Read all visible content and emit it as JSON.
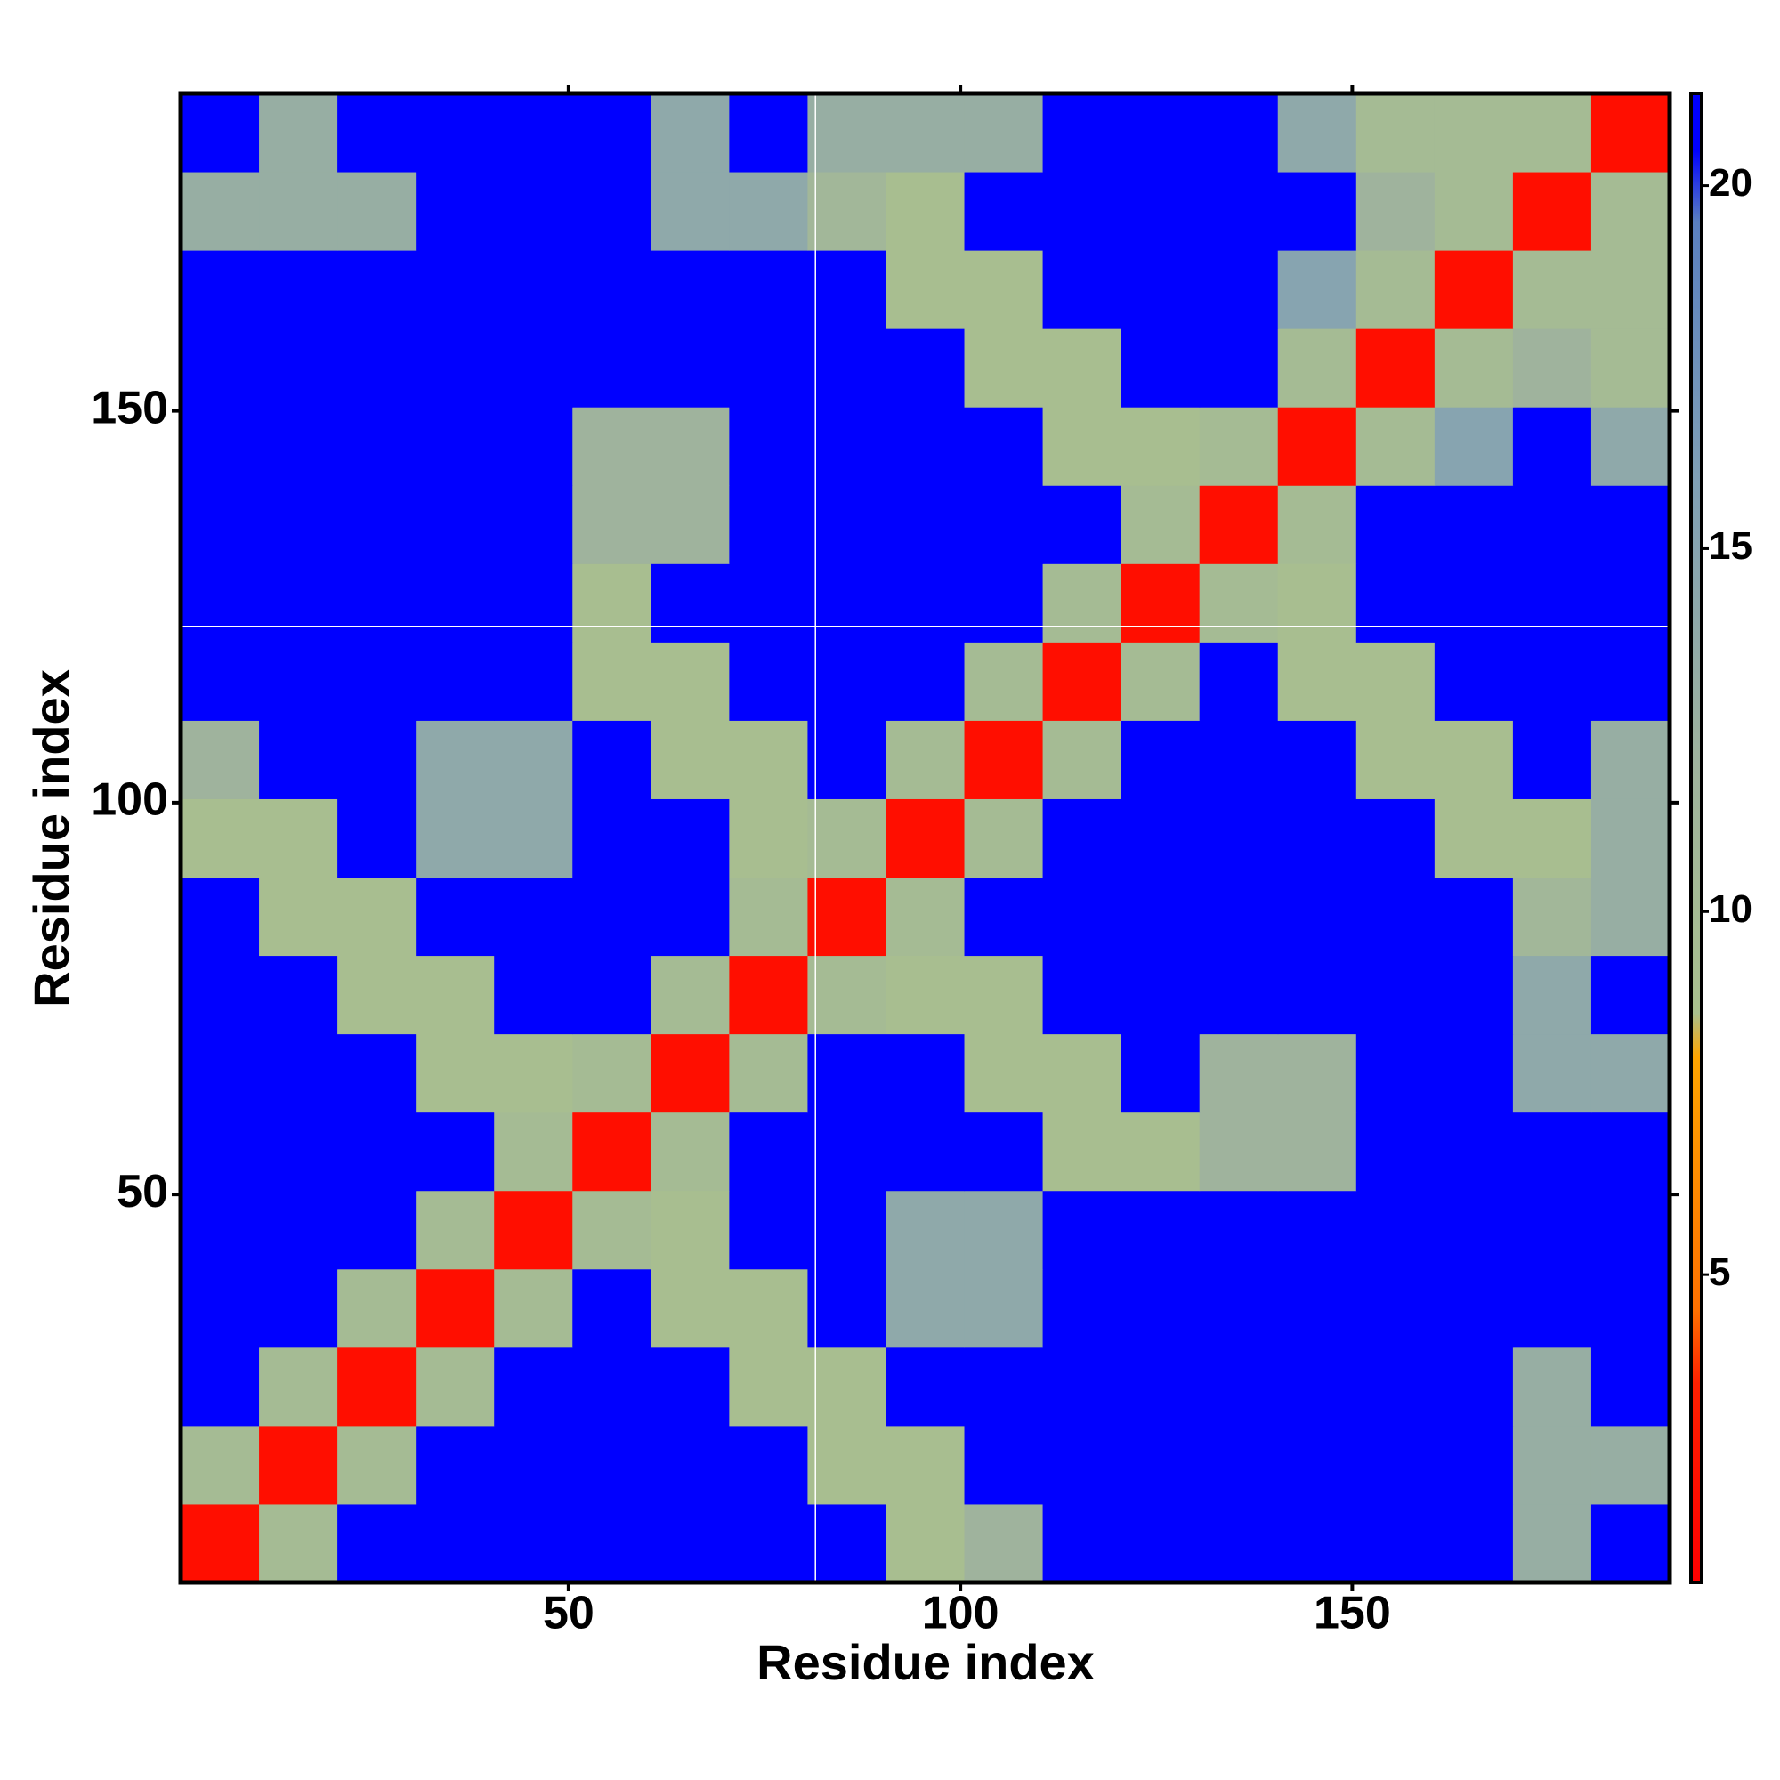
{
  "chart_data": {
    "type": "heatmap",
    "xlabel": "Residue index",
    "ylabel": "Residue index",
    "x": [
      5.5,
      15.5,
      25.5,
      35.5,
      45.5,
      55.5,
      65.5,
      75.5,
      85.5,
      95.5,
      105.5,
      115.5,
      125.5,
      135.5,
      145.5,
      155.5,
      165.5,
      175.5,
      185.5
    ],
    "y": [
      5.5,
      15.5,
      25.5,
      35.5,
      45.5,
      55.5,
      65.5,
      75.5,
      85.5,
      95.5,
      105.5,
      115.5,
      125.5,
      135.5,
      145.5,
      155.5,
      165.5,
      175.5,
      185.5
    ],
    "z": [
      [
        2,
        10,
        21,
        21,
        21,
        21,
        21,
        21,
        21,
        9,
        12,
        21,
        21,
        21,
        21,
        21,
        21,
        13,
        21
      ],
      [
        10,
        2,
        10,
        21,
        21,
        21,
        21,
        21,
        9,
        9,
        21,
        21,
        21,
        21,
        21,
        21,
        21,
        13,
        13
      ],
      [
        21,
        10,
        2,
        10,
        21,
        21,
        21,
        9,
        9,
        21,
        21,
        21,
        21,
        21,
        21,
        21,
        21,
        13,
        21
      ],
      [
        21,
        21,
        10,
        2,
        10,
        21,
        9,
        9,
        21,
        14,
        14,
        21,
        21,
        21,
        21,
        21,
        21,
        21,
        21
      ],
      [
        21,
        21,
        21,
        10,
        2,
        10,
        9,
        21,
        21,
        14,
        14,
        21,
        21,
        21,
        21,
        21,
        21,
        21,
        21
      ],
      [
        21,
        21,
        21,
        21,
        10,
        2,
        10,
        21,
        21,
        21,
        21,
        9,
        9,
        12,
        12,
        21,
        21,
        21,
        21
      ],
      [
        21,
        21,
        21,
        9,
        9,
        10,
        2,
        10,
        21,
        21,
        9,
        9,
        21,
        12,
        12,
        21,
        21,
        14,
        14
      ],
      [
        21,
        21,
        9,
        9,
        21,
        21,
        10,
        2,
        10,
        9,
        9,
        21,
        21,
        21,
        21,
        21,
        21,
        14,
        21
      ],
      [
        21,
        9,
        9,
        21,
        21,
        21,
        21,
        10,
        2,
        10,
        21,
        21,
        21,
        21,
        21,
        21,
        21,
        11,
        13
      ],
      [
        9,
        9,
        21,
        14,
        14,
        21,
        21,
        9,
        10,
        2,
        10,
        21,
        21,
        21,
        21,
        21,
        9,
        9,
        13
      ],
      [
        12,
        21,
        21,
        14,
        14,
        21,
        9,
        9,
        21,
        10,
        2,
        10,
        21,
        21,
        21,
        9,
        9,
        21,
        13
      ],
      [
        21,
        21,
        21,
        21,
        21,
        9,
        9,
        21,
        21,
        21,
        10,
        2,
        10,
        21,
        9,
        9,
        21,
        21,
        21
      ],
      [
        21,
        21,
        21,
        21,
        21,
        9,
        21,
        21,
        21,
        21,
        21,
        10,
        2,
        10,
        9,
        21,
        21,
        21,
        21
      ],
      [
        21,
        21,
        21,
        21,
        21,
        12,
        12,
        21,
        21,
        21,
        21,
        21,
        10,
        2,
        10,
        21,
        21,
        21,
        21
      ],
      [
        21,
        21,
        21,
        21,
        21,
        12,
        12,
        21,
        21,
        21,
        21,
        9,
        9,
        10,
        2,
        10,
        15,
        21,
        14
      ],
      [
        21,
        21,
        21,
        21,
        21,
        21,
        21,
        21,
        21,
        21,
        9,
        9,
        21,
        21,
        10,
        2,
        10,
        12,
        10
      ],
      [
        21,
        21,
        21,
        21,
        21,
        21,
        21,
        21,
        21,
        9,
        9,
        21,
        21,
        21,
        15,
        10,
        2,
        10,
        10
      ],
      [
        13,
        13,
        13,
        21,
        21,
        21,
        14,
        14,
        11,
        9,
        21,
        21,
        21,
        21,
        21,
        12,
        10,
        2,
        10
      ],
      [
        21,
        13,
        21,
        21,
        21,
        21,
        14,
        21,
        13,
        13,
        13,
        21,
        21,
        21,
        14,
        10,
        10,
        10,
        2
      ]
    ],
    "xlim": [
      0.5,
      190.5
    ],
    "ylim": [
      0.5,
      190.5
    ],
    "xticks": [
      50,
      100,
      150
    ],
    "yticks": [
      50,
      100,
      150
    ],
    "zlim": [
      0.76,
      21.27
    ],
    "zticks": [
      5,
      10,
      15,
      20
    ],
    "colorscale": [
      [
        0.76,
        "#ff0000"
      ],
      [
        3.5,
        "#ff2000"
      ],
      [
        4.5,
        "#ff7000"
      ],
      [
        8,
        "#ffa500"
      ],
      [
        8.6,
        "#a9c08e"
      ],
      [
        12,
        "#9fb39d"
      ],
      [
        16,
        "#7f9fb6"
      ],
      [
        19.5,
        "#5a80c0"
      ],
      [
        20.5,
        "#0000ff"
      ],
      [
        21.27,
        "#0000ff"
      ]
    ],
    "vlines": [
      81.5
    ],
    "hlines": [
      122.5
    ],
    "line_color": "#ffffff"
  }
}
